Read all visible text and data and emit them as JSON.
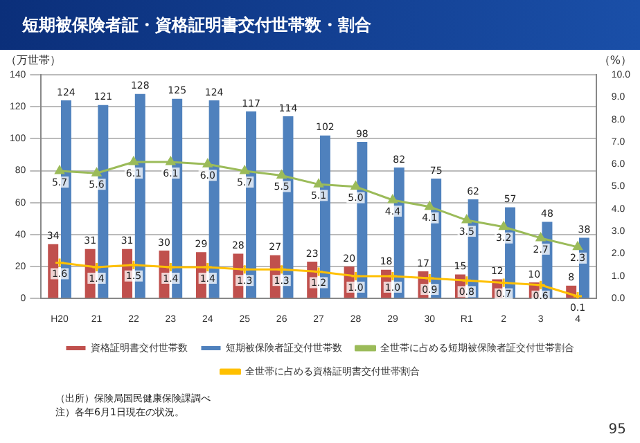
{
  "chart_data": {
    "type": "bar",
    "title": "短期被保険者証・資格証明書交付世帯数・割合",
    "ylabel": "（万世帯）",
    "y2label": "（%）",
    "categories": [
      "H20",
      "21",
      "22",
      "23",
      "24",
      "25",
      "26",
      "27",
      "28",
      "29",
      "30",
      "R1",
      "2",
      "3",
      "4"
    ],
    "series": [
      {
        "name": "資格証明書交付世帯数",
        "color": "#c0504d",
        "values": [
          34,
          31,
          31,
          30,
          29,
          28,
          27,
          23,
          20,
          18,
          17,
          15,
          12,
          10,
          8
        ]
      },
      {
        "name": "短期被保険者証交付世帯数",
        "color": "#4f81bd",
        "values": [
          124,
          121,
          128,
          125,
          124,
          117,
          114,
          102,
          98,
          82,
          75,
          62,
          57,
          48,
          38
        ]
      },
      {
        "name": "全世帯に占める短期被保険者証交付世帯割合",
        "type": "line",
        "axis": "y2",
        "marker": "triangle",
        "color": "#9bbb59",
        "values": [
          5.7,
          5.6,
          6.1,
          6.1,
          6.0,
          5.7,
          5.5,
          5.1,
          5.0,
          4.4,
          4.1,
          3.5,
          3.2,
          2.7,
          2.3
        ],
        "value_labels": [
          "5.7",
          "5.6",
          "6.1",
          "6.1",
          "6.0",
          "5.7",
          "5.5",
          "5.1",
          "5.0",
          "4.4",
          "4.1",
          "3.5",
          "3.2",
          "2.7",
          "2.3"
        ]
      },
      {
        "name": "全世帯に占める資格証明書交付世帯割合",
        "type": "line",
        "axis": "y2",
        "marker": "cross",
        "color": "#ffc000",
        "values": [
          1.6,
          1.4,
          1.5,
          1.4,
          1.4,
          1.3,
          1.3,
          1.2,
          1.0,
          1.0,
          0.9,
          0.8,
          0.7,
          0.6,
          0.1
        ],
        "value_labels": [
          "1.6",
          "1.4",
          "1.5",
          "1.4",
          "1.4",
          "1.3",
          "1.3",
          "1.2",
          "1.0",
          "1.0",
          "0.9",
          "0.8",
          "0.7",
          "0.6",
          "0.1"
        ]
      }
    ],
    "ylim": [
      0,
      140
    ],
    "yticks": [
      0,
      20,
      40,
      60,
      80,
      100,
      120,
      140
    ],
    "y2lim": [
      0,
      10
    ],
    "y2ticks": [
      {
        "value": 0,
        "label": "0.0"
      },
      {
        "value": 1,
        "label": "1.0"
      },
      {
        "value": 2,
        "label": "2.0"
      },
      {
        "value": 3,
        "label": "3.0"
      },
      {
        "value": 4,
        "label": "4.0"
      },
      {
        "value": 5,
        "label": "5.0"
      },
      {
        "value": 6,
        "label": "6.0"
      },
      {
        "value": 7,
        "label": "7.0"
      },
      {
        "value": 8,
        "label": "8.0"
      },
      {
        "value": 9,
        "label": "9.0"
      },
      {
        "value": 10,
        "label": "10.0"
      }
    ],
    "grid": "y",
    "legend": "bottom",
    "data_labels": true,
    "annotations": [
      "（出所）保険局国民健康保険課調べ",
      "注）各年6月1日現在の状況。",
      "95"
    ]
  }
}
